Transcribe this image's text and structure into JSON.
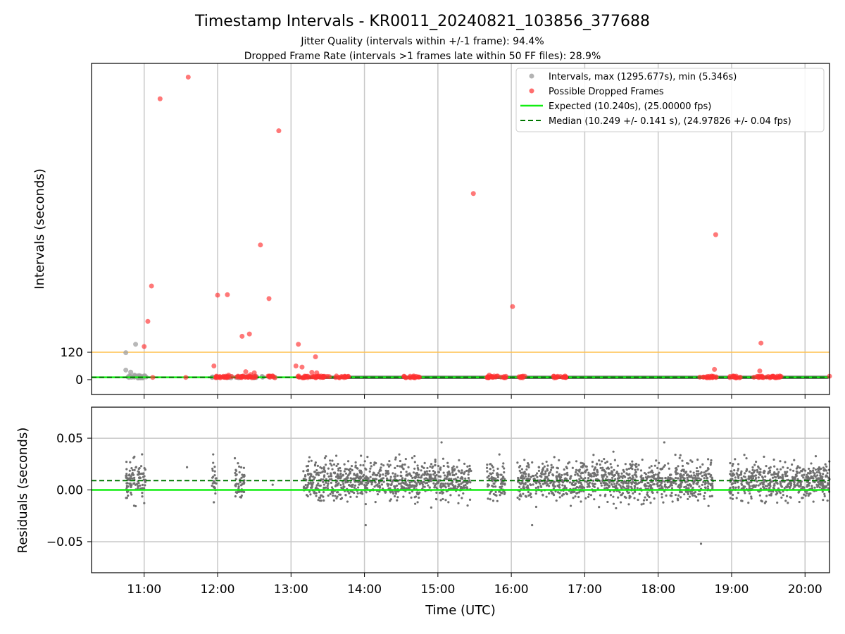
{
  "chart_data": [
    {
      "type": "scatter",
      "title": "Timestamp Intervals - KR0011_20240821_103856_377688",
      "subtitle_lines": [
        "Jitter Quality (intervals within +/-1 frame): 94.4%",
        "Dropped Frame Rate (intervals >1 frames late within 50 FF files): 28.9%"
      ],
      "ylabel": "Intervals (seconds)",
      "y_ticks": [
        {
          "value": 0,
          "label": "0"
        },
        {
          "value": 120,
          "label": "120"
        }
      ],
      "ylim": [
        -65,
        1385
      ],
      "xlim": [
        "10:17",
        "20:20"
      ],
      "threshold_line": {
        "value": 120,
        "color": "#ffc04d"
      },
      "legend_position": "top-right",
      "legend": [
        {
          "label": "Intervals, max (1295.677s), min (5.346s)",
          "kind": "marker",
          "color": "#a0a0a0"
        },
        {
          "label": "Possible Dropped Frames",
          "kind": "marker",
          "color": "#ff3030"
        },
        {
          "label": "Expected (10.240s), (25.00000 fps)",
          "kind": "line",
          "color": "#11ee11"
        },
        {
          "label": "Median (10.249 +/- 0.141 s), (24.97826 +/- 0.04 fps)",
          "kind": "dashed",
          "color": "#007700"
        }
      ],
      "expected_interval": 10.24,
      "median_interval": 10.249,
      "dropped_points": [
        {
          "t": "11:13",
          "y": 1230
        },
        {
          "t": "11:36",
          "y": 1325
        },
        {
          "t": "12:50",
          "y": 1090
        },
        {
          "t": "15:29",
          "y": 815
        },
        {
          "t": "18:47",
          "y": 635
        },
        {
          "t": "12:35",
          "y": 590
        },
        {
          "t": "11:06",
          "y": 410
        },
        {
          "t": "12:00",
          "y": 370
        },
        {
          "t": "12:08",
          "y": 372
        },
        {
          "t": "12:42",
          "y": 355
        },
        {
          "t": "16:01",
          "y": 320
        },
        {
          "t": "11:03",
          "y": 255
        },
        {
          "t": "12:20",
          "y": 190
        },
        {
          "t": "12:26",
          "y": 200
        },
        {
          "t": "11:00",
          "y": 145
        },
        {
          "t": "13:06",
          "y": 155
        },
        {
          "t": "19:24",
          "y": 160
        },
        {
          "t": "13:20",
          "y": 100
        },
        {
          "t": "11:57",
          "y": 60
        },
        {
          "t": "13:04",
          "y": 60
        },
        {
          "t": "13:09",
          "y": 55
        },
        {
          "t": "18:46",
          "y": 45
        },
        {
          "t": "19:23",
          "y": 38
        },
        {
          "t": "12:23",
          "y": 35
        },
        {
          "t": "12:30",
          "y": 30
        },
        {
          "t": "13:17",
          "y": 32
        },
        {
          "t": "13:21",
          "y": 30
        },
        {
          "t": "12:27",
          "y": 22
        },
        {
          "t": "12:09",
          "y": 20
        },
        {
          "t": "15:42",
          "y": 20
        },
        {
          "t": "20:20",
          "y": 15
        },
        {
          "t": "11:07",
          "y": 10
        },
        {
          "t": "11:34",
          "y": 10
        }
      ],
      "dropped_clusters": [
        [
          "11:57",
          "12:12"
        ],
        [
          "12:15",
          "12:32"
        ],
        [
          "12:40",
          "12:47"
        ],
        [
          "13:05",
          "13:32"
        ],
        [
          "13:36",
          "13:47"
        ],
        [
          "14:32",
          "14:45"
        ],
        [
          "15:40",
          "15:57"
        ],
        [
          "16:05",
          "16:13"
        ],
        [
          "16:33",
          "16:45"
        ],
        [
          "18:34",
          "18:48"
        ],
        [
          "18:58",
          "19:08"
        ],
        [
          "19:18",
          "19:42"
        ]
      ],
      "normal_points": [
        {
          "t": "10:45",
          "y": 118
        },
        {
          "t": "10:53",
          "y": 155
        },
        {
          "t": "10:45",
          "y": 42
        },
        {
          "t": "10:49",
          "y": 33
        },
        {
          "t": "10:52",
          "y": 20
        },
        {
          "t": "10:56",
          "y": 15
        }
      ],
      "normal_band": [
        "13:05",
        "20:20"
      ]
    },
    {
      "type": "scatter",
      "xlabel": "Time (UTC)",
      "ylabel": "Residuals (seconds)",
      "ylim": [
        -0.08,
        0.08
      ],
      "y_ticks": [
        {
          "value": 0.05,
          "label": "0.05"
        },
        {
          "value": 0.0,
          "label": "0.00"
        },
        {
          "value": -0.05,
          "label": "−0.05"
        }
      ],
      "x_ticks": [
        "11:00",
        "12:00",
        "13:00",
        "14:00",
        "15:00",
        "16:00",
        "17:00",
        "18:00",
        "19:00",
        "20:00"
      ],
      "expected_residual": 0.0,
      "median_residual": 0.009,
      "expected_color": "#11ee11",
      "median_color": "#007700",
      "point_color": "#707070",
      "residual_segments": [
        [
          "10:45",
          "11:02"
        ],
        [
          "11:55",
          "11:59"
        ],
        [
          "12:14",
          "12:22"
        ],
        [
          "13:10",
          "15:28"
        ],
        [
          "15:40",
          "15:55"
        ],
        [
          "16:05",
          "18:45"
        ],
        [
          "18:58",
          "20:20"
        ]
      ],
      "residual_outliers": [
        {
          "t": "18:35",
          "y": -0.052
        },
        {
          "t": "16:17",
          "y": -0.034
        },
        {
          "t": "14:01",
          "y": -0.034
        },
        {
          "t": "11:35",
          "y": 0.022
        },
        {
          "t": "12:45",
          "y": 0.005
        },
        {
          "t": "15:03",
          "y": 0.046
        },
        {
          "t": "18:05",
          "y": 0.046
        }
      ]
    }
  ]
}
